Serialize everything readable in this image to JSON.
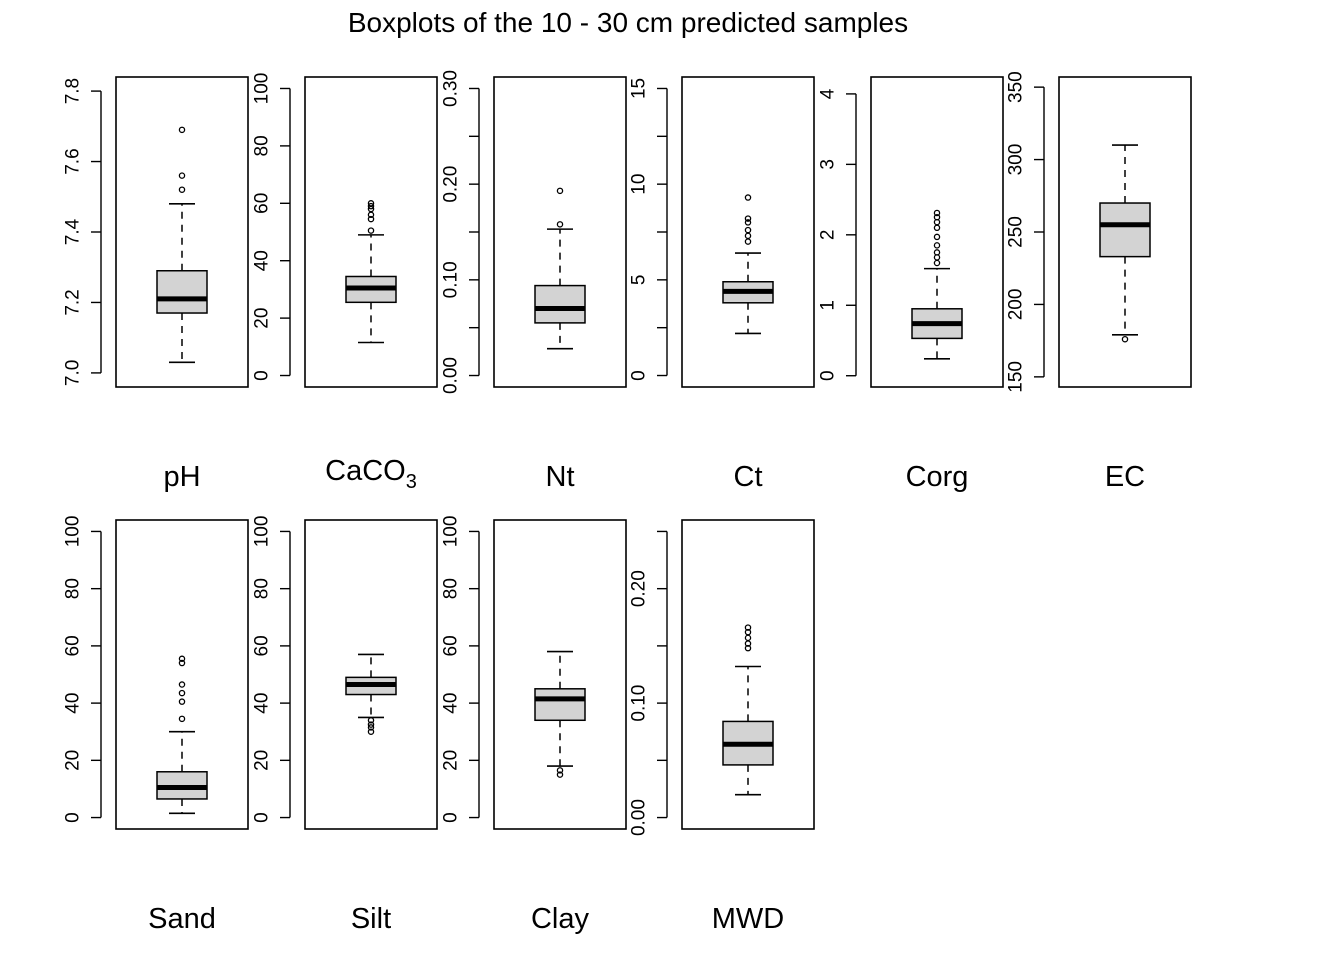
{
  "figure": {
    "title": "Boxplots of the 10 - 30 cm predicted samples",
    "box_fill": "#d3d3d3",
    "stroke": "#000000"
  },
  "chart_data": [
    {
      "type": "boxplot",
      "label": "pH",
      "ylim": [
        6.96,
        7.84
      ],
      "yticks": [
        7.0,
        7.2,
        7.4,
        7.6,
        7.8
      ],
      "ytick_labels": [
        "7.0",
        "7.2",
        "7.4",
        "7.6",
        "7.8"
      ],
      "whisker_low": 7.03,
      "q1": 7.17,
      "median": 7.21,
      "q3": 7.29,
      "whisker_high": 7.48,
      "outliers": [
        7.52,
        7.56,
        7.69
      ]
    },
    {
      "type": "boxplot",
      "label": "CaCO",
      "label_subscript": "3",
      "ylim": [
        -4,
        104
      ],
      "yticks": [
        0,
        20,
        40,
        60,
        80,
        100
      ],
      "ytick_labels": [
        "0",
        "20",
        "40",
        "60",
        "80",
        "100"
      ],
      "whisker_low": 11.5,
      "q1": 25.5,
      "median": 30.5,
      "q3": 34.5,
      "whisker_high": 49,
      "outliers": [
        50.5,
        54.5,
        56,
        58,
        59,
        60
      ]
    },
    {
      "type": "boxplot",
      "label": "Nt",
      "ylim": [
        -0.012,
        0.312
      ],
      "yticks": [
        0.0,
        0.05,
        0.1,
        0.15,
        0.2,
        0.25,
        0.3
      ],
      "ytick_labels": [
        "0.00",
        "",
        "0.10",
        "",
        "0.20",
        "",
        "0.30"
      ],
      "whisker_low": 0.028,
      "q1": 0.055,
      "median": 0.07,
      "q3": 0.094,
      "whisker_high": 0.153,
      "outliers": [
        0.158,
        0.193
      ]
    },
    {
      "type": "boxplot",
      "label": "Ct",
      "ylim": [
        -0.6,
        15.6
      ],
      "yticks": [
        0,
        2.5,
        5,
        7.5,
        10,
        12.5,
        15
      ],
      "ytick_labels": [
        "0",
        "",
        "5",
        "",
        "10",
        "",
        "15"
      ],
      "whisker_low": 2.2,
      "q1": 3.8,
      "median": 4.4,
      "q3": 4.9,
      "whisker_high": 6.4,
      "outliers": [
        7.0,
        7.3,
        7.6,
        8.0,
        8.2,
        9.3
      ]
    },
    {
      "type": "boxplot",
      "label": "Corg",
      "ylim": [
        -0.16,
        4.24
      ],
      "yticks": [
        0,
        1,
        2,
        3,
        4
      ],
      "ytick_labels": [
        "0",
        "1",
        "2",
        "3",
        "4"
      ],
      "whisker_low": 0.24,
      "q1": 0.53,
      "median": 0.74,
      "q3": 0.95,
      "whisker_high": 1.52,
      "outliers": [
        1.6,
        1.68,
        1.75,
        1.85,
        1.97,
        2.1,
        2.18,
        2.25,
        2.31
      ]
    },
    {
      "type": "boxplot",
      "label": "EC",
      "ylim": [
        143,
        357
      ],
      "yticks": [
        150,
        200,
        250,
        300,
        350
      ],
      "ytick_labels": [
        "150",
        "200",
        "250",
        "300",
        "350"
      ],
      "whisker_low": 179,
      "q1": 233,
      "median": 255,
      "q3": 270,
      "whisker_high": 310,
      "outliers": [
        176
      ]
    },
    {
      "type": "boxplot",
      "label": "Sand",
      "ylim": [
        -4,
        104
      ],
      "yticks": [
        0,
        20,
        40,
        60,
        80,
        100
      ],
      "ytick_labels": [
        "0",
        "20",
        "40",
        "60",
        "80",
        "100"
      ],
      "whisker_low": 1.5,
      "q1": 6.5,
      "median": 10.5,
      "q3": 16,
      "whisker_high": 30,
      "outliers": [
        34.5,
        40.5,
        43.5,
        46.5,
        54,
        55.5
      ]
    },
    {
      "type": "boxplot",
      "label": "Silt",
      "ylim": [
        -4,
        104
      ],
      "yticks": [
        0,
        20,
        40,
        60,
        80,
        100
      ],
      "ytick_labels": [
        "0",
        "20",
        "40",
        "60",
        "80",
        "100"
      ],
      "whisker_low": 35,
      "q1": 43,
      "median": 46.5,
      "q3": 49,
      "whisker_high": 57,
      "outliers": [
        30,
        31.5,
        32.5,
        34
      ]
    },
    {
      "type": "boxplot",
      "label": "Clay",
      "ylim": [
        -4,
        104
      ],
      "yticks": [
        0,
        20,
        40,
        60,
        80,
        100
      ],
      "ytick_labels": [
        "0",
        "20",
        "40",
        "60",
        "80",
        "100"
      ],
      "whisker_low": 18,
      "q1": 34,
      "median": 41.5,
      "q3": 45,
      "whisker_high": 58,
      "outliers": [
        15,
        16.5
      ]
    },
    {
      "type": "boxplot",
      "label": "MWD",
      "ylim": [
        -0.01,
        0.26
      ],
      "yticks": [
        0.0,
        0.05,
        0.1,
        0.15,
        0.2,
        0.25
      ],
      "ytick_labels": [
        "0.00",
        "",
        "0.10",
        "",
        "0.20",
        ""
      ],
      "whisker_low": 0.02,
      "q1": 0.046,
      "median": 0.064,
      "q3": 0.084,
      "whisker_high": 0.132,
      "outliers": [
        0.148,
        0.152,
        0.157,
        0.162,
        0.166
      ]
    }
  ]
}
